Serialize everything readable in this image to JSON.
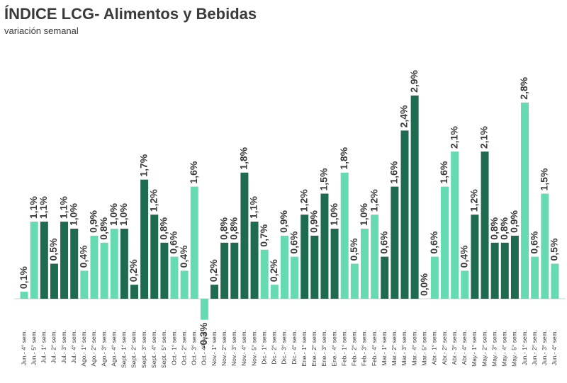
{
  "chart_data": {
    "type": "bar",
    "title": "ÍNDICE LCG- Alimentos y Bebidas",
    "subtitle": "variación semanal",
    "categories": [
      "Jun.- 4° sem.",
      "Jun.- 5° sem.",
      "Jul.- 1° sem.",
      "Jul.- 2° sem.",
      "Jul.- 3° sem.",
      "Jul.- 4° sem.",
      "Ago.- 1° sem.",
      "Ago.- 2° sem.",
      "Ago.- 3° sem.",
      "Ago.- 4° sem.",
      "Sept.- 1° sem.",
      "Sept.- 2° sem.",
      "Sept.- 3° sem.",
      "Sept.- 4° sem.",
      "Sept.- 5° sem.",
      "Oct.- 1° sem.",
      "Oct.- 2° sem.",
      "Oct.- 3° sem.",
      "Oct.- 4° sem.",
      "Nov.- 1° sem.",
      "Nov.- 2° sem.",
      "Nov.- 3° sem.",
      "Nov.- 4° sem.",
      "Nov.- 5° sem.",
      "Dic.- 1° sem.",
      "Dic.- 2° sem.",
      "Dic.- 3° sem.",
      "Dic.- 4° sem.",
      "Ene.- 1° sem.",
      "Ene.- 2° sem.",
      "Ene.- 3° sem.",
      "Ene.- 4° sem.",
      "Feb.- 1° sem.",
      "Feb.- 2° sem.",
      "Feb.- 3° sem.",
      "Feb.- 4° sem.",
      "Mar.- 1° sem.",
      "Mar.- 2° sem.",
      "Mar.- 3° sem.",
      "Mar.- 4° sem.",
      "Mar.- 5° sem.",
      "Abr.- 1° sem.",
      "Abr.- 2° sem.",
      "Abr.- 3° sem.",
      "Abr.- 4° sem.",
      "May.- 1° sem.",
      "May.- 2° sem.",
      "May.- 3° sem.",
      "May.- 4° sem.",
      "May.- 5° sem.",
      "Jun.- 1° sem.",
      "Jun.- 2° sem.",
      "Jun.- 3° sem.",
      "Jun.- 4° sem."
    ],
    "values": [
      0.1,
      1.1,
      1.1,
      0.5,
      1.1,
      1.0,
      0.4,
      0.9,
      0.8,
      1.0,
      1.0,
      0.2,
      1.7,
      1.2,
      0.8,
      0.6,
      0.4,
      1.6,
      -0.3,
      0.2,
      0.8,
      0.8,
      1.8,
      1.1,
      0.7,
      0.2,
      0.9,
      0.6,
      1.2,
      0.9,
      1.5,
      1.0,
      1.8,
      0.5,
      1.0,
      1.2,
      0.6,
      1.6,
      2.4,
      2.9,
      0.0,
      0.6,
      1.6,
      2.1,
      0.4,
      1.2,
      2.1,
      0.8,
      0.8,
      0.9,
      2.8,
      0.6,
      1.5,
      0.5
    ],
    "value_labels": [
      "0,1%",
      "1,1%",
      "1,1%",
      "0,5%",
      "1,1%",
      "1,0%",
      "0,4%",
      "0,9%",
      "0,8%",
      "1,0%",
      "1,0%",
      "0,2%",
      "1,7%",
      "1,2%",
      "0,8%",
      "0,6%",
      "0,4%",
      "1,6%",
      "-0,3%",
      "0,2%",
      "0,8%",
      "0,8%",
      "1,8%",
      "1,1%",
      "0,7%",
      "0,2%",
      "0,9%",
      "0,6%",
      "1,2%",
      "0,9%",
      "1,5%",
      "1,0%",
      "1,8%",
      "0,5%",
      "1,0%",
      "1,2%",
      "0,6%",
      "1,6%",
      "2,4%",
      "2,9%",
      "0,0%",
      "0,6%",
      "1,6%",
      "2,1%",
      "0,4%",
      "1,2%",
      "2,1%",
      "0,8%",
      "0,8%",
      "0,9%",
      "2,8%",
      "0,6%",
      "1,5%",
      "0,5%"
    ],
    "colors": [
      "#66dbb2",
      "#66dbb2",
      "#1e6b4f",
      "#1e6b4f",
      "#1e6b4f",
      "#1e6b4f",
      "#66dbb2",
      "#66dbb2",
      "#66dbb2",
      "#66dbb2",
      "#1e6b4f",
      "#1e6b4f",
      "#1e6b4f",
      "#1e6b4f",
      "#1e6b4f",
      "#66dbb2",
      "#66dbb2",
      "#66dbb2",
      "#66dbb2",
      "#1e6b4f",
      "#1e6b4f",
      "#1e6b4f",
      "#1e6b4f",
      "#1e6b4f",
      "#66dbb2",
      "#66dbb2",
      "#66dbb2",
      "#66dbb2",
      "#1e6b4f",
      "#1e6b4f",
      "#1e6b4f",
      "#1e6b4f",
      "#66dbb2",
      "#66dbb2",
      "#66dbb2",
      "#66dbb2",
      "#1e6b4f",
      "#1e6b4f",
      "#1e6b4f",
      "#1e6b4f",
      "#1e6b4f",
      "#66dbb2",
      "#66dbb2",
      "#66dbb2",
      "#66dbb2",
      "#1e6b4f",
      "#1e6b4f",
      "#1e6b4f",
      "#1e6b4f",
      "#1e6b4f",
      "#66dbb2",
      "#66dbb2",
      "#66dbb2",
      "#66dbb2"
    ]
  }
}
